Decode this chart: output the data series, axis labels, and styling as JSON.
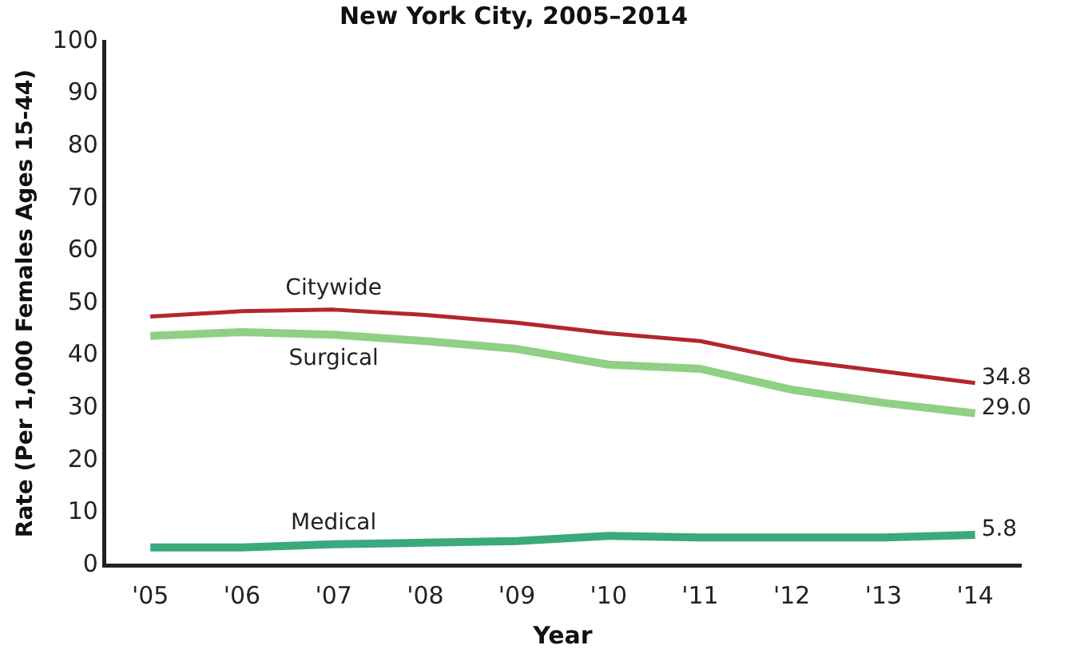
{
  "chart_data": {
    "type": "line",
    "title": "New York City, 2005–2014",
    "xlabel": "Year",
    "ylabel": "Rate (Per 1,000 Females Ages 15-44)",
    "categories": [
      "'05",
      "'06",
      "'07",
      "'08",
      "'09",
      "'10",
      "'11",
      "'12",
      "'13",
      "'14"
    ],
    "ylim": [
      0,
      100
    ],
    "yticks": [
      0,
      10,
      20,
      30,
      40,
      50,
      60,
      70,
      80,
      90,
      100
    ],
    "grid": false,
    "legend": false,
    "marker": "none",
    "line_style": "solid",
    "series": [
      {
        "name": "Citywide",
        "color": "#b3262d",
        "values": [
          47.5,
          48.5,
          48.8,
          47.8,
          46.3,
          44.3,
          42.8,
          39.2,
          37.0,
          34.8
        ],
        "value_labels": [
          null,
          null,
          null,
          null,
          null,
          null,
          null,
          null,
          null,
          "34.8"
        ]
      },
      {
        "name": "Surgical",
        "color": "#8fd084",
        "values": [
          43.8,
          44.5,
          44.0,
          42.8,
          41.3,
          38.3,
          37.5,
          33.5,
          31.0,
          29.0
        ],
        "value_labels": [
          null,
          null,
          null,
          null,
          null,
          null,
          null,
          null,
          null,
          "29.0"
        ]
      },
      {
        "name": "Medical",
        "color": "#3aa97c",
        "values": [
          3.4,
          3.4,
          4.0,
          4.3,
          4.6,
          5.6,
          5.3,
          5.3,
          5.3,
          5.8
        ],
        "value_labels": [
          null,
          null,
          null,
          null,
          null,
          null,
          null,
          null,
          null,
          "5.8"
        ]
      }
    ]
  }
}
